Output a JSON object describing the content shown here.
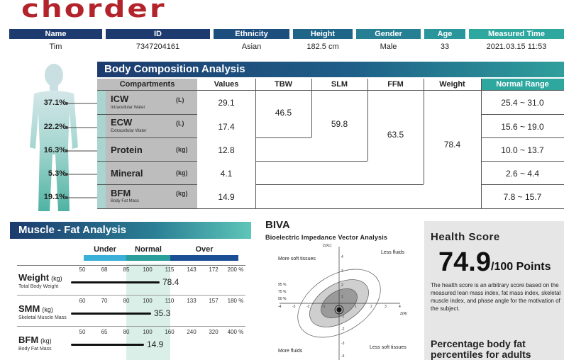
{
  "logo": "chorder",
  "info": {
    "headers": [
      "Name",
      "ID",
      "Ethnicity",
      "Height",
      "Gender",
      "Age",
      "Measured Time"
    ],
    "values": [
      "Tim",
      "7347204161",
      "Asian",
      "182.5 cm",
      "Male",
      "33",
      "2021.03.15 11:53"
    ]
  },
  "bca": {
    "title": "Body Composition Analysis",
    "columns": [
      "Compartments",
      "Values",
      "TBW",
      "SLM",
      "FFM",
      "Weight",
      "Normal Range"
    ],
    "rows": [
      {
        "name": "ICW",
        "sub": "Intracellular Water",
        "unit": "(L)",
        "value": "29.1",
        "range": "25.4 ~ 31.0",
        "pct": "37.1%"
      },
      {
        "name": "ECW",
        "sub": "Extracellular Water",
        "unit": "(L)",
        "value": "17.4",
        "range": "15.6 ~ 19.0",
        "pct": "22.2%"
      },
      {
        "name": "Protein",
        "sub": "",
        "unit": "(kg)",
        "value": "12.8",
        "range": "10.0 ~ 13.7",
        "pct": "16.3%"
      },
      {
        "name": "Mineral",
        "sub": "",
        "unit": "(kg)",
        "value": "4.1",
        "range": "2.6 ~ 4.4",
        "pct": "5.3%"
      },
      {
        "name": "BFM",
        "sub": "Body Fat Mass",
        "unit": "(kg)",
        "value": "14.9",
        "range": "7.8 ~ 15.7",
        "pct": "19.1%"
      }
    ],
    "tbw": "46.5",
    "slm": "59.8",
    "ffm": "63.5",
    "weight": "78.4"
  },
  "mf": {
    "title": "Muscle - Fat Analysis",
    "bands": [
      "Under",
      "Normal",
      "Over"
    ],
    "rows": [
      {
        "name": "Weight",
        "unit": "(kg)",
        "sub": "Total Body Weight",
        "ticks": [
          "50",
          "68",
          "85",
          "100",
          "115",
          "143",
          "172",
          "200 %"
        ],
        "value": "78.4",
        "fill": 0.52
      },
      {
        "name": "SMM",
        "unit": "(kg)",
        "sub": "Skeletal Muscle Mass",
        "ticks": [
          "60",
          "70",
          "80",
          "100",
          "110",
          "133",
          "157",
          "180 %"
        ],
        "value": "35.3",
        "fill": 0.47
      },
      {
        "name": "BFM",
        "unit": "(kg)",
        "sub": "Body Fat Mass",
        "ticks": [
          "50",
          "65",
          "80",
          "100",
          "160",
          "240",
          "320",
          "400 %"
        ],
        "value": "14.9",
        "fill": 0.43
      }
    ]
  },
  "biva": {
    "title": "BIVA",
    "subtitle": "Bioelectric Impedance Vector Analysis",
    "yaxis": "Z(Xc)",
    "xaxis": "Z(R)",
    "tl": "More soft tissues",
    "tr": "Less fluids",
    "bl": "More fluids",
    "br": "Less soft tissues",
    "e95": "95 %",
    "e75": "75 %",
    "e50": "50 %",
    "xticks": [
      "-4",
      "-3",
      "-2",
      "-1",
      "1",
      "2",
      "3",
      "4"
    ],
    "yticks": [
      "4",
      "3",
      "2",
      "1",
      "-1",
      "-2",
      "-3",
      "-4"
    ]
  },
  "health": {
    "title": "Health Score",
    "score": "74.9",
    "suffix": "/100 Points",
    "desc": "The health score is an arbitrary score based on the measured lean mass index, fat mass index, skeletal muscle index, and phase angle for the motivation of the subject.",
    "pbf_title": "Percentage body fat percentiles for adults"
  },
  "colors": {
    "navy": "#1d3b6e",
    "teal": "#2aa39c",
    "brand": "#b3232b",
    "under": "#3ab0d8",
    "normal": "#2a9e9a",
    "over": "#1a4f96"
  }
}
